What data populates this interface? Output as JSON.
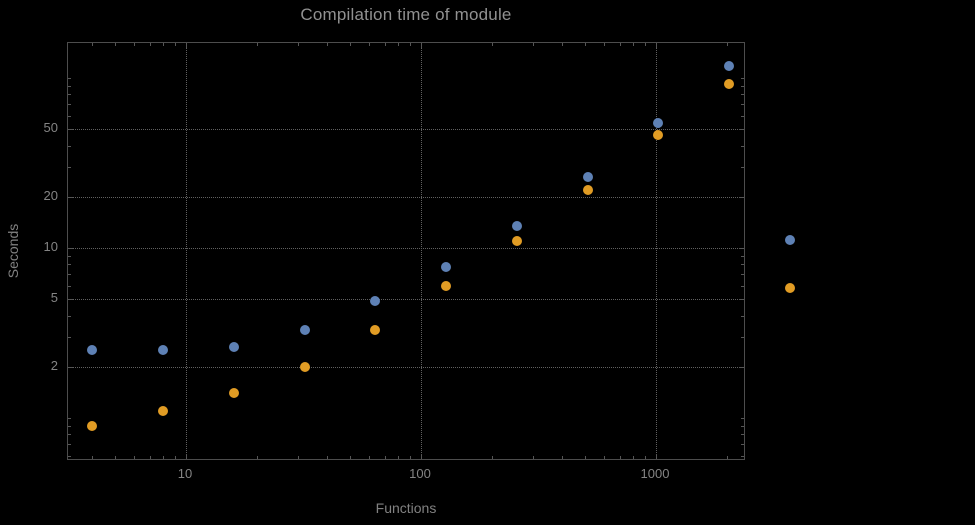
{
  "title": "Compilation time of module",
  "colors": {
    "background": "#000000",
    "grid": "#616161",
    "frame": "#4d4d4d",
    "label": "#848484",
    "title": "#919191",
    "series_blue": "#5E81B5",
    "series_orange": "#E19C24"
  },
  "chart_data": {
    "type": "scatter",
    "title": "Compilation time of module",
    "xlabel": "Functions",
    "ylabel": "Seconds",
    "x_scale": "log",
    "y_scale": "log",
    "grid": "dotted, at major ticks",
    "legend_position": "right-outside (unlabeled markers)",
    "x_ticks": [
      10,
      100,
      1000
    ],
    "y_ticks": [
      2,
      5,
      10,
      20,
      50
    ],
    "x_range": [
      3.2,
      2400
    ],
    "y_range": [
      0.56,
      160
    ],
    "series": [
      {
        "name": "blue",
        "color": "#5E81B5",
        "points": [
          [
            4,
            2.5
          ],
          [
            8,
            2.5
          ],
          [
            16,
            2.6
          ],
          [
            32,
            3.3
          ],
          [
            64,
            4.9
          ],
          [
            128,
            7.7
          ],
          [
            256,
            13.5
          ],
          [
            512,
            26
          ],
          [
            1024,
            54
          ],
          [
            2048,
            118
          ]
        ]
      },
      {
        "name": "orange",
        "color": "#E19C24",
        "points": [
          [
            4,
            0.9
          ],
          [
            8,
            1.1
          ],
          [
            16,
            1.4
          ],
          [
            32,
            2.0
          ],
          [
            64,
            3.3
          ],
          [
            128,
            6.0
          ],
          [
            256,
            11
          ],
          [
            512,
            22
          ],
          [
            1024,
            46
          ],
          [
            2048,
            92
          ]
        ]
      }
    ]
  }
}
